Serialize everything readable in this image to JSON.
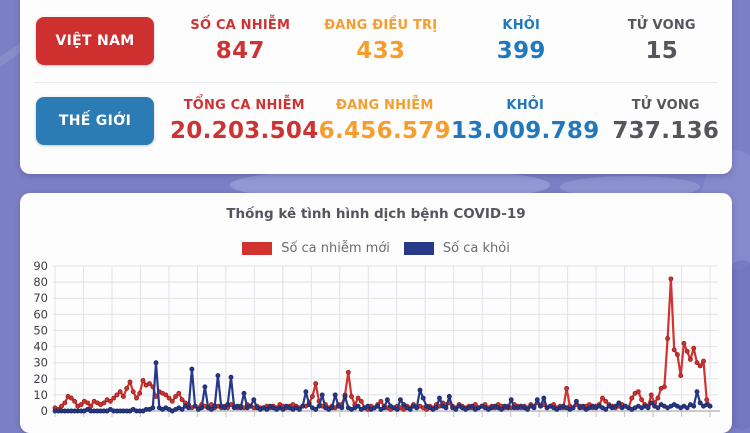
{
  "vietnam": {
    "button_label": "VIỆT NAM",
    "button_color": "#ce2f2f",
    "stats": [
      {
        "label": "SỐ CA NHIỄM",
        "value": "847",
        "color": "#cd3333"
      },
      {
        "label": "ĐANG ĐIỀU TRỊ",
        "value": "433",
        "color": "#f59e2e"
      },
      {
        "label": "KHỎI",
        "value": "399",
        "color": "#2278bc"
      },
      {
        "label": "TỬ VONG",
        "value": "15",
        "color": "#55565c"
      }
    ]
  },
  "world": {
    "button_label": "THẾ GIỚI",
    "button_color": "#2b7cb5",
    "stats": [
      {
        "label": "TỔNG CA NHIỄM",
        "value": "20.203.504",
        "color": "#cd3333"
      },
      {
        "label": "ĐANG NHIỄM",
        "value": "6.456.579",
        "color": "#f59e2e"
      },
      {
        "label": "KHỎI",
        "value": "13.009.789",
        "color": "#2278bc"
      },
      {
        "label": "TỬ VONG",
        "value": "737.136",
        "color": "#55565c"
      }
    ]
  },
  "chart_data": {
    "type": "line",
    "title": "Thống kê tình hình dịch bệnh COVID-19",
    "xlabel": "",
    "ylabel": "",
    "ylim": [
      0,
      90
    ],
    "yticks": [
      0,
      10,
      20,
      30,
      40,
      50,
      60,
      70,
      80,
      90
    ],
    "grid": true,
    "legend_position": "top",
    "series": [
      {
        "name": "Số ca nhiễm mới",
        "color": "#d13330",
        "marker_stroke": "#9c2320",
        "values": [
          2,
          1,
          3,
          5,
          9,
          8,
          6,
          3,
          4,
          6,
          5,
          3,
          6,
          5,
          4,
          5,
          7,
          6,
          8,
          10,
          12,
          9,
          14,
          18,
          12,
          8,
          11,
          19,
          16,
          17,
          15,
          9,
          12,
          11,
          10,
          8,
          6,
          9,
          11,
          7,
          5,
          4,
          2,
          3,
          2,
          4,
          3,
          2,
          4,
          2,
          3,
          2,
          3,
          2,
          4,
          3,
          2,
          3,
          2,
          4,
          3,
          2,
          3,
          2,
          2,
          3,
          2,
          3,
          2,
          4,
          3,
          2,
          3,
          4,
          3,
          2,
          3,
          3,
          5,
          9,
          17,
          6,
          3,
          4,
          2,
          3,
          2,
          4,
          4,
          10,
          24,
          9,
          4,
          8,
          6,
          2,
          1,
          3,
          2,
          4,
          6,
          3,
          2,
          1,
          2,
          3,
          2,
          1,
          3,
          2,
          4,
          2,
          3,
          2,
          1,
          3,
          2,
          4,
          3,
          5,
          4,
          5,
          3,
          2,
          4,
          3,
          2,
          3,
          2,
          4,
          2,
          3,
          4,
          2,
          3,
          2,
          4,
          3,
          2,
          3,
          2,
          4,
          3,
          2,
          3,
          2,
          4,
          3,
          5,
          3,
          4,
          2,
          3,
          4,
          2,
          3,
          2,
          14,
          3,
          2,
          4,
          3,
          2,
          3,
          4,
          2,
          3,
          4,
          8,
          6,
          4,
          3,
          2,
          3,
          4,
          3,
          2,
          8,
          11,
          12,
          7,
          4,
          3,
          10,
          5,
          8,
          14,
          15,
          45,
          82,
          38,
          35,
          22,
          42,
          37,
          32,
          39,
          30,
          28,
          31,
          7,
          3
        ]
      },
      {
        "name": "Số ca khỏi",
        "color": "#283a87",
        "marker_stroke": "#1b2a66",
        "values": [
          0,
          0,
          0,
          0,
          0,
          0,
          0,
          0,
          0,
          0,
          1,
          0,
          0,
          0,
          0,
          0,
          0,
          1,
          0,
          0,
          0,
          0,
          0,
          0,
          1,
          0,
          0,
          0,
          1,
          1,
          2,
          30,
          2,
          1,
          2,
          1,
          0,
          1,
          2,
          1,
          3,
          2,
          26,
          3,
          1,
          2,
          15,
          2,
          1,
          3,
          22,
          3,
          2,
          4,
          21,
          2,
          3,
          2,
          11,
          2,
          3,
          7,
          2,
          1,
          2,
          1,
          3,
          2,
          1,
          2,
          1,
          3,
          2,
          1,
          2,
          1,
          3,
          12,
          4,
          2,
          1,
          3,
          10,
          2,
          1,
          2,
          10,
          3,
          2,
          9,
          2,
          1,
          2,
          3,
          1,
          2,
          3,
          1,
          2,
          3,
          1,
          2,
          7,
          3,
          2,
          1,
          7,
          4,
          2,
          1,
          3,
          2,
          13,
          8,
          3,
          2,
          1,
          2,
          8,
          3,
          2,
          9,
          2,
          1,
          3,
          2,
          1,
          2,
          3,
          1,
          2,
          3,
          2,
          1,
          2,
          3,
          2,
          1,
          3,
          2,
          7,
          2,
          2,
          3,
          2,
          1,
          3,
          2,
          7,
          3,
          8,
          2,
          3,
          2,
          1,
          2,
          3,
          2,
          1,
          2,
          6,
          2,
          3,
          1,
          2,
          3,
          2,
          3,
          2,
          1,
          3,
          2,
          3,
          5,
          2,
          3,
          2,
          1,
          2,
          3,
          2,
          3,
          2,
          5,
          3,
          2,
          4,
          3,
          2,
          3,
          4,
          3,
          2,
          3,
          2,
          4,
          3,
          12,
          5,
          3,
          4,
          3
        ]
      }
    ]
  }
}
